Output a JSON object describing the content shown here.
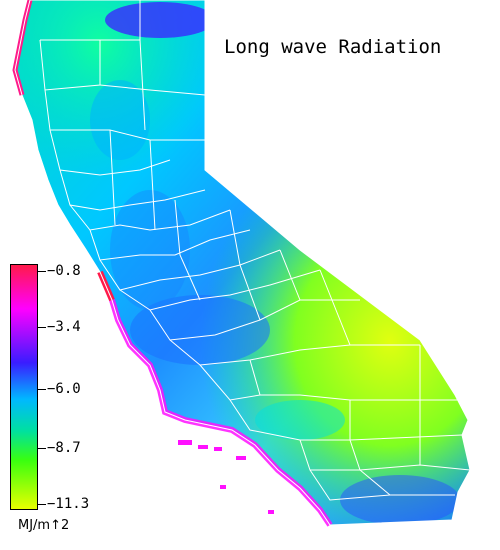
{
  "title": "Long wave Radiation",
  "legend": {
    "unit": "MJ/m↑2",
    "ticks": [
      {
        "label": "−0.8",
        "value": -0.8
      },
      {
        "label": "−3.4",
        "value": -3.4
      },
      {
        "label": "−6.0",
        "value": -6.0
      },
      {
        "label": "−8.7",
        "value": -8.7
      },
      {
        "label": "−11.3",
        "value": -11.3
      }
    ],
    "colors": [
      "#ff1a4a",
      "#ff00ff",
      "#3a1cff",
      "#00b8ff",
      "#00e0a0",
      "#39ff10",
      "#e8ff00"
    ]
  },
  "map": {
    "region": "California",
    "land_color_cool": "#1e90ff",
    "land_color_mid": "#00e0c0",
    "land_color_warm": "#c8ff10",
    "coast_color": "#ff1a8a",
    "border_color": "#ffffff"
  }
}
